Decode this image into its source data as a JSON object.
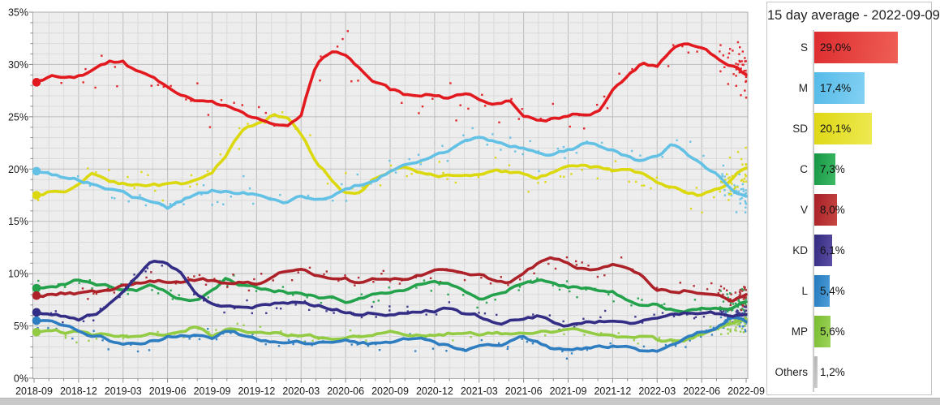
{
  "legend": {
    "title": "15 day average - 2022-09-09",
    "entries": [
      {
        "party": "S",
        "value": 29.0,
        "value_label": "29,0%",
        "color_dark": "#dd2c2f",
        "color_light": "#ef5f55"
      },
      {
        "party": "M",
        "value": 17.4,
        "value_label": "17,4%",
        "color_dark": "#55bbe8",
        "color_light": "#82d0f3"
      },
      {
        "party": "SD",
        "value": 20.1,
        "value_label": "20,1%",
        "color_dark": "#ded714",
        "color_light": "#eeea52"
      },
      {
        "party": "C",
        "value": 7.3,
        "value_label": "7,3%",
        "color_dark": "#149544",
        "color_light": "#3fba65"
      },
      {
        "party": "V",
        "value": 8.0,
        "value_label": "8,0%",
        "color_dark": "#a81e26",
        "color_light": "#c64742"
      },
      {
        "party": "KD",
        "value": 6.1,
        "value_label": "6,1%",
        "color_dark": "#33297f",
        "color_light": "#5a4fa5"
      },
      {
        "party": "L",
        "value": 5.4,
        "value_label": "5,4%",
        "color_dark": "#2478bc",
        "color_light": "#4d9fd8"
      },
      {
        "party": "MP",
        "value": 5.6,
        "value_label": "5,6%",
        "color_dark": "#78bc2e",
        "color_light": "#9ed45c"
      },
      {
        "party": "Others",
        "value": 1.2,
        "value_label": "1,2%",
        "color_dark": "#b3b3b3",
        "color_light": "#cfcfcf"
      }
    ]
  },
  "chart_data": {
    "type": "line+scatter",
    "description": "Swedish party polling, individual polls (dots) and 15-day average lines, 2018-09 to 2022-09",
    "x_tick_labels": [
      "2018-09",
      "2018-12",
      "2019-03",
      "2019-06",
      "2019-09",
      "2019-12",
      "2020-03",
      "2020-06",
      "2020-09",
      "2020-12",
      "2021-03",
      "2021-06",
      "2021-09",
      "2021-12",
      "2022-03",
      "2022-06",
      "2022-09"
    ],
    "y_tick_labels": [
      "0%",
      "5%",
      "10%",
      "15%",
      "20%",
      "25%",
      "30%",
      "35%"
    ],
    "ylim": [
      0,
      35
    ],
    "months_span": 48,
    "grid": "minor monthly / 1%, major quarterly / 5%",
    "series": [
      {
        "name": "S",
        "color": "#e2191f",
        "start_value": 28.3,
        "end_value": 29.0,
        "monthly_values": [
          28.3,
          28.7,
          28.9,
          29.0,
          29.5,
          30.3,
          30.3,
          29.2,
          28.6,
          27.5,
          27.0,
          26.6,
          26.3,
          25.9,
          25.3,
          24.8,
          24.3,
          24.1,
          25.2,
          30.0,
          31.3,
          30.8,
          29.6,
          28.4,
          27.6,
          27.1,
          26.8,
          27.0,
          26.6,
          27.1,
          26.6,
          26.2,
          26.4,
          25.2,
          24.7,
          24.9,
          25.1,
          25.4,
          25.6,
          27.5,
          29.0,
          30.2,
          29.8,
          31.3,
          31.9,
          31.3,
          30.6,
          29.9,
          29.0
        ]
      },
      {
        "name": "M",
        "color": "#62c1e5",
        "start_value": 19.8,
        "end_value": 17.4,
        "monthly_values": [
          19.8,
          19.5,
          19.3,
          19.0,
          18.6,
          18.2,
          17.8,
          17.2,
          16.6,
          16.1,
          16.9,
          17.6,
          17.9,
          18.0,
          17.8,
          17.7,
          17.0,
          16.5,
          17.4,
          17.3,
          17.6,
          18.1,
          18.6,
          19.2,
          19.9,
          20.3,
          20.8,
          21.3,
          21.9,
          22.7,
          23.0,
          22.6,
          22.1,
          22.0,
          21.7,
          21.4,
          21.8,
          22.3,
          22.2,
          21.7,
          21.2,
          20.8,
          21.1,
          22.3,
          21.4,
          20.3,
          19.4,
          18.3,
          17.4
        ]
      },
      {
        "name": "SD",
        "color": "#dcd80e",
        "start_value": 17.5,
        "end_value": 20.1,
        "monthly_values": [
          17.5,
          17.8,
          18.1,
          18.5,
          19.6,
          18.9,
          18.6,
          18.5,
          18.6,
          18.5,
          18.6,
          19.0,
          19.4,
          21.3,
          23.7,
          24.4,
          25.2,
          25.0,
          23.2,
          20.7,
          19.1,
          17.9,
          17.8,
          19.0,
          19.9,
          20.2,
          19.8,
          19.5,
          19.4,
          19.0,
          19.5,
          20.1,
          19.9,
          19.5,
          19.2,
          19.8,
          20.3,
          20.6,
          20.3,
          19.9,
          19.7,
          19.4,
          18.6,
          18.0,
          17.6,
          17.4,
          17.9,
          18.8,
          20.1
        ]
      },
      {
        "name": "C",
        "color": "#23a14b",
        "start_value": 8.6,
        "end_value": 7.3,
        "monthly_values": [
          8.6,
          8.6,
          9.0,
          9.3,
          8.9,
          8.6,
          8.5,
          8.4,
          8.7,
          8.3,
          7.7,
          7.4,
          8.5,
          9.6,
          9.1,
          8.7,
          8.5,
          8.3,
          8.0,
          7.8,
          7.6,
          7.4,
          7.7,
          8.0,
          7.8,
          8.2,
          8.8,
          9.1,
          8.8,
          8.2,
          7.3,
          7.6,
          8.4,
          8.9,
          9.3,
          9.0,
          8.7,
          8.5,
          8.3,
          8.1,
          7.4,
          7.1,
          7.3,
          6.8,
          6.8,
          7.0,
          7.1,
          6.9,
          7.3
        ]
      },
      {
        "name": "V",
        "color": "#ad2129",
        "start_value": 7.9,
        "end_value": 8.0,
        "monthly_values": [
          7.9,
          8.0,
          8.1,
          8.0,
          8.0,
          8.3,
          9.0,
          9.4,
          9.6,
          9.4,
          9.3,
          9.5,
          9.3,
          8.9,
          9.0,
          9.1,
          9.5,
          10.2,
          10.7,
          9.9,
          9.3,
          9.3,
          8.8,
          9.3,
          9.5,
          9.4,
          9.7,
          10.0,
          10.3,
          9.9,
          9.7,
          9.1,
          9.2,
          10.0,
          10.9,
          11.3,
          10.9,
          10.5,
          10.3,
          10.6,
          10.3,
          9.9,
          8.4,
          8.3,
          8.5,
          8.4,
          8.5,
          7.6,
          8.0
        ]
      },
      {
        "name": "KD",
        "color": "#332d85",
        "start_value": 6.3,
        "end_value": 6.1,
        "monthly_values": [
          6.3,
          6.3,
          5.9,
          5.6,
          6.0,
          6.8,
          8.3,
          10.0,
          11.2,
          10.7,
          9.8,
          7.8,
          6.8,
          6.9,
          7.0,
          7.1,
          6.9,
          7.2,
          7.1,
          6.8,
          6.6,
          6.4,
          6.2,
          6.4,
          6.3,
          6.5,
          6.3,
          6.4,
          6.8,
          6.3,
          5.9,
          5.4,
          5.5,
          5.8,
          6.0,
          5.3,
          5.0,
          5.5,
          5.5,
          5.4,
          5.4,
          5.5,
          5.8,
          5.9,
          6.0,
          6.0,
          6.1,
          6.0,
          6.1
        ]
      },
      {
        "name": "L",
        "color": "#2e7dc0",
        "start_value": 5.5,
        "end_value": 5.4,
        "monthly_values": [
          5.5,
          5.2,
          4.8,
          4.4,
          4.0,
          3.6,
          3.2,
          3.2,
          3.6,
          4.0,
          4.2,
          4.4,
          4.1,
          4.7,
          4.1,
          3.7,
          3.5,
          3.2,
          3.3,
          3.4,
          3.5,
          3.6,
          3.4,
          3.3,
          3.4,
          3.6,
          3.5,
          3.5,
          3.1,
          2.9,
          3.0,
          2.9,
          3.3,
          3.7,
          3.2,
          2.8,
          2.5,
          2.8,
          3.0,
          3.0,
          2.8,
          2.5,
          2.4,
          3.0,
          3.8,
          4.4,
          4.9,
          5.9,
          5.4
        ]
      },
      {
        "name": "MP",
        "color": "#93cc44",
        "start_value": 4.4,
        "end_value": 5.6,
        "monthly_values": [
          4.4,
          4.3,
          4.2,
          4.2,
          4.0,
          3.9,
          3.9,
          4.0,
          4.2,
          4.3,
          4.8,
          5.2,
          4.3,
          5.0,
          4.7,
          4.5,
          4.4,
          4.2,
          4.1,
          3.9,
          4.0,
          4.0,
          3.9,
          4.0,
          4.2,
          4.1,
          4.0,
          4.0,
          4.2,
          4.0,
          4.0,
          4.1,
          4.1,
          4.1,
          4.2,
          4.3,
          4.5,
          4.4,
          4.1,
          3.9,
          3.7,
          3.7,
          3.4,
          3.6,
          3.8,
          4.2,
          4.6,
          5.0,
          5.6
        ]
      }
    ]
  }
}
